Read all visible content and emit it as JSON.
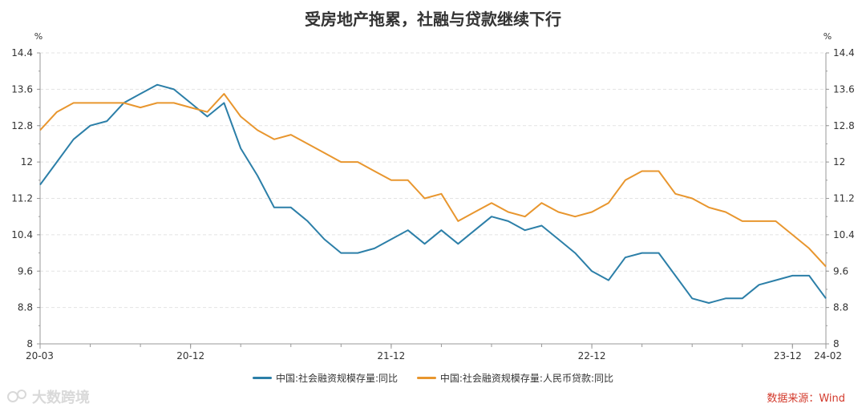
{
  "title": "受房地产拖累，社融与贷款继续下行",
  "source": "数据来源：Wind",
  "watermark": "大数跨境",
  "colors": {
    "series1": "#2c7fa8",
    "series2": "#e8962e",
    "grid": "#e3e3e3",
    "axis": "#999999",
    "text": "#333333"
  },
  "chart_data": {
    "type": "line",
    "x": [
      "2020-03",
      "2020-04",
      "2020-05",
      "2020-06",
      "2020-07",
      "2020-08",
      "2020-09",
      "2020-10",
      "2020-11",
      "2020-12",
      "2021-01",
      "2021-02",
      "2021-03",
      "2021-04",
      "2021-05",
      "2021-06",
      "2021-07",
      "2021-08",
      "2021-09",
      "2021-10",
      "2021-11",
      "2021-12",
      "2022-01",
      "2022-02",
      "2022-03",
      "2022-04",
      "2022-05",
      "2022-06",
      "2022-07",
      "2022-08",
      "2022-09",
      "2022-10",
      "2022-11",
      "2022-12",
      "2023-01",
      "2023-02",
      "2023-03",
      "2023-04",
      "2023-05",
      "2023-06",
      "2023-07",
      "2023-08",
      "2023-09",
      "2023-10",
      "2023-11",
      "2023-12",
      "2024-01",
      "2024-02"
    ],
    "x_ticks": [
      "20-03",
      "20-12",
      "21-12",
      "22-12",
      "23-12",
      "24-02"
    ],
    "x_tick_index": [
      0,
      9,
      21,
      33,
      45,
      47
    ],
    "ylabel_left": "%",
    "ylabel_right": "%",
    "ylim": [
      8,
      14.4
    ],
    "y_ticks": [
      "8",
      "8.8",
      "9.6",
      "10.4",
      "11.2",
      "12",
      "12.8",
      "13.6",
      "14.4"
    ],
    "grid": true,
    "legend_position": "bottom",
    "series": [
      {
        "name": "中国:社会融资规模存量:同比",
        "values": [
          11.5,
          12.0,
          12.5,
          12.8,
          12.9,
          13.3,
          13.5,
          13.7,
          13.6,
          13.3,
          13.0,
          13.3,
          12.3,
          11.7,
          11.0,
          11.0,
          10.7,
          10.3,
          10.0,
          10.0,
          10.1,
          10.3,
          10.5,
          10.2,
          10.5,
          10.2,
          10.5,
          10.8,
          10.7,
          10.5,
          10.6,
          10.3,
          10.0,
          9.6,
          9.4,
          9.9,
          10.0,
          10.0,
          9.5,
          9.0,
          8.9,
          9.0,
          9.0,
          9.3,
          9.4,
          9.5,
          9.5,
          9.0
        ]
      },
      {
        "name": "中国:社会融资规模存量:人民币贷款:同比",
        "values": [
          12.7,
          13.1,
          13.3,
          13.3,
          13.3,
          13.3,
          13.2,
          13.3,
          13.3,
          13.2,
          13.1,
          13.5,
          13.0,
          12.7,
          12.5,
          12.6,
          12.4,
          12.2,
          12.0,
          12.0,
          11.8,
          11.6,
          11.6,
          11.2,
          11.3,
          10.7,
          10.9,
          11.1,
          10.9,
          10.8,
          11.1,
          10.9,
          10.8,
          10.9,
          11.1,
          11.6,
          11.8,
          11.8,
          11.3,
          11.2,
          11.0,
          10.9,
          10.7,
          10.7,
          10.7,
          10.4,
          10.1,
          9.7
        ]
      }
    ]
  }
}
